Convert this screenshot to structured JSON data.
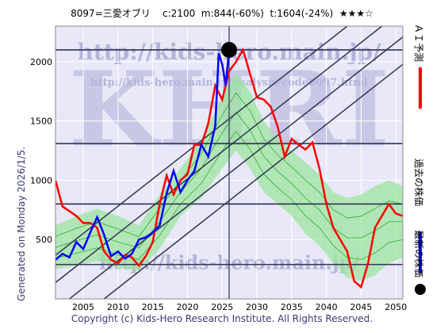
{
  "header": {
    "code_name": "8097=三愛オブリ",
    "current": "c:2100",
    "max": "m:844(-60%)",
    "target": "t:1604(-24%)",
    "rating": "★★★☆"
  },
  "side_text": "Generated on Monday 2026/1/5.",
  "footer": "Copyright (c) Kids-Hero Research Institute. All Rights Reserved.",
  "watermarks": {
    "url_top": "http://kids-hero.main.jp/",
    "url_mid": "http://kids-hero.main.jp/analysis/code8097.html",
    "big": "KHRI",
    "url_bottom": "http://kids-hero.main.jp/"
  },
  "legend": [
    {
      "label": "ＡＩ予測",
      "color": "#ff0000",
      "kind": "line"
    },
    {
      "label": "過去の株価",
      "color": "#0000ff",
      "kind": "line"
    },
    {
      "label": "最新の株価",
      "color": "#000000",
      "kind": "dot"
    }
  ],
  "chart_data": {
    "type": "line",
    "xlim": [
      2001,
      2051
    ],
    "ylim": [
      0,
      2300
    ],
    "x_ticks": [
      2005,
      2010,
      2015,
      2020,
      2025,
      2030,
      2035,
      2040,
      2045,
      2050
    ],
    "y_ticks": [
      500,
      1000,
      1500,
      2000
    ],
    "grid": true,
    "colors": {
      "background": "#e8e8f8",
      "grid": "#ffffff",
      "past": "#0000ff",
      "forecast": "#ff0000",
      "band_fill": "#99e699",
      "band_yellow": "#f2f5a0",
      "band_line": "#33aa33",
      "horizontal": "#333355",
      "diagonal": "#333355"
    },
    "horizontal_lines": [
      2100,
      1310,
      800,
      290
    ],
    "vertical_line_x": 2026.0,
    "latest_point": {
      "x": 2026.0,
      "y": 2100
    },
    "series": [
      {
        "name": "過去の株価",
        "points": [
          [
            2001,
            330
          ],
          [
            2002,
            380
          ],
          [
            2003,
            350
          ],
          [
            2004,
            480
          ],
          [
            2005,
            420
          ],
          [
            2006,
            560
          ],
          [
            2007,
            690
          ],
          [
            2008,
            540
          ],
          [
            2009,
            360
          ],
          [
            2010,
            400
          ],
          [
            2011,
            340
          ],
          [
            2012,
            380
          ],
          [
            2013,
            500
          ],
          [
            2014,
            520
          ],
          [
            2015,
            560
          ],
          [
            2016,
            620
          ],
          [
            2017,
            890
          ],
          [
            2018,
            1080
          ],
          [
            2019,
            900
          ],
          [
            2020,
            1000
          ],
          [
            2021,
            1080
          ],
          [
            2022,
            1300
          ],
          [
            2023,
            1200
          ],
          [
            2024,
            1460
          ],
          [
            2024.5,
            2070
          ],
          [
            2025,
            1980
          ],
          [
            2025.5,
            1800
          ],
          [
            2026,
            2100
          ]
        ]
      },
      {
        "name": "ＡＩ予測",
        "points": [
          [
            2001,
            1000
          ],
          [
            2002,
            780
          ],
          [
            2003,
            740
          ],
          [
            2004,
            700
          ],
          [
            2005,
            640
          ],
          [
            2006,
            640
          ],
          [
            2007,
            600
          ],
          [
            2008,
            400
          ],
          [
            2009,
            330
          ],
          [
            2010,
            300
          ],
          [
            2011,
            370
          ],
          [
            2012,
            350
          ],
          [
            2013,
            280
          ],
          [
            2014,
            360
          ],
          [
            2015,
            480
          ],
          [
            2016,
            800
          ],
          [
            2017,
            1040
          ],
          [
            2018,
            880
          ],
          [
            2019,
            1000
          ],
          [
            2020,
            1050
          ],
          [
            2021,
            1300
          ],
          [
            2022,
            1300
          ],
          [
            2023,
            1480
          ],
          [
            2024,
            1800
          ],
          [
            2025,
            1680
          ],
          [
            2026,
            1920
          ],
          [
            2027,
            2000
          ],
          [
            2028,
            2100
          ],
          [
            2029,
            1900
          ],
          [
            2030,
            1700
          ],
          [
            2031,
            1680
          ],
          [
            2032,
            1620
          ],
          [
            2033,
            1450
          ],
          [
            2034,
            1200
          ],
          [
            2035,
            1350
          ],
          [
            2036,
            1300
          ],
          [
            2037,
            1260
          ],
          [
            2038,
            1320
          ],
          [
            2039,
            1100
          ],
          [
            2040,
            800
          ],
          [
            2041,
            600
          ],
          [
            2042,
            500
          ],
          [
            2043,
            400
          ],
          [
            2044,
            150
          ],
          [
            2045,
            100
          ],
          [
            2046,
            300
          ],
          [
            2047,
            600
          ],
          [
            2048,
            700
          ],
          [
            2049,
            800
          ],
          [
            2050,
            720
          ],
          [
            2051,
            700
          ]
        ]
      },
      {
        "name": "band_upper",
        "points": [
          [
            2001,
            620
          ],
          [
            2004,
            700
          ],
          [
            2007,
            760
          ],
          [
            2010,
            700
          ],
          [
            2013,
            620
          ],
          [
            2016,
            880
          ],
          [
            2019,
            1100
          ],
          [
            2022,
            1350
          ],
          [
            2025,
            1700
          ],
          [
            2027,
            1900
          ],
          [
            2029,
            1750
          ],
          [
            2031,
            1500
          ],
          [
            2033,
            1350
          ],
          [
            2035,
            1250
          ],
          [
            2037,
            1150
          ],
          [
            2039,
            1050
          ],
          [
            2041,
            900
          ],
          [
            2043,
            850
          ],
          [
            2045,
            880
          ],
          [
            2047,
            950
          ],
          [
            2049,
            1000
          ],
          [
            2051,
            950
          ]
        ]
      },
      {
        "name": "band_lower",
        "points": [
          [
            2001,
            250
          ],
          [
            2004,
            280
          ],
          [
            2007,
            320
          ],
          [
            2010,
            260
          ],
          [
            2013,
            240
          ],
          [
            2016,
            420
          ],
          [
            2019,
            700
          ],
          [
            2022,
            850
          ],
          [
            2025,
            1100
          ],
          [
            2027,
            1250
          ],
          [
            2029,
            1100
          ],
          [
            2031,
            900
          ],
          [
            2033,
            800
          ],
          [
            2035,
            700
          ],
          [
            2037,
            550
          ],
          [
            2039,
            450
          ],
          [
            2041,
            300
          ],
          [
            2043,
            180
          ],
          [
            2045,
            150
          ],
          [
            2047,
            200
          ],
          [
            2049,
            300
          ],
          [
            2051,
            350
          ]
        ]
      }
    ]
  }
}
